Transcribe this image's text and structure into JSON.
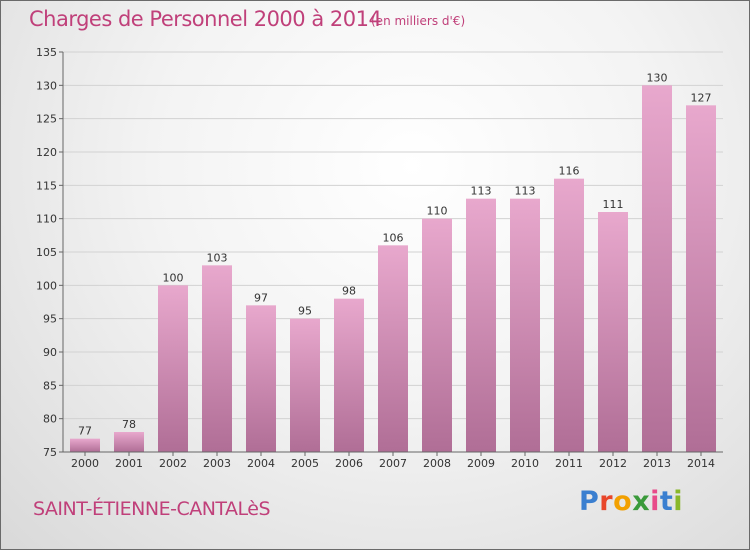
{
  "chart_data": {
    "type": "bar",
    "title": "Charges de Personnel 2000 à 2014",
    "subtitle": "(en milliers d'€)",
    "categories": [
      "2000",
      "2001",
      "2002",
      "2003",
      "2004",
      "2005",
      "2006",
      "2007",
      "2008",
      "2009",
      "2010",
      "2011",
      "2012",
      "2013",
      "2014"
    ],
    "values": [
      77,
      78,
      100,
      103,
      97,
      95,
      98,
      106,
      110,
      113,
      113,
      116,
      111,
      130,
      127
    ],
    "ylim": [
      75,
      135
    ],
    "yticks": [
      75,
      80,
      85,
      90,
      95,
      100,
      105,
      110,
      115,
      120,
      125,
      130,
      135
    ],
    "grid": true,
    "bar_color_top": "#e8a8cd",
    "bar_color_bottom": "#b06e96"
  },
  "commune": "SAINT-ÉTIENNE-CANTALèS",
  "logo": {
    "letters": [
      "P",
      "r",
      "o",
      "x",
      "i",
      "t",
      "i"
    ],
    "colors": [
      "#3a7fd0",
      "#e8462a",
      "#f2a000",
      "#3a9a3a",
      "#e84a8a",
      "#3a7fd0",
      "#8ab82a"
    ]
  }
}
